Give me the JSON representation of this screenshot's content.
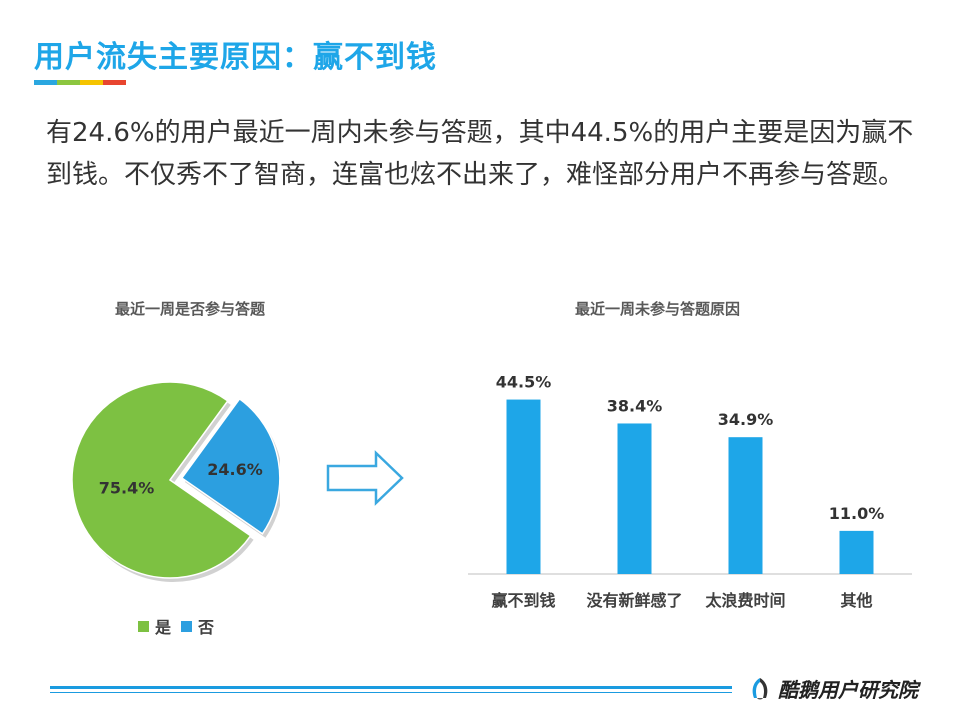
{
  "page": {
    "title": "用户流失主要原因：赢不到钱",
    "title_colors": [
      "#2aa7e0",
      "#8cc63f",
      "#f5c400",
      "#e8452f"
    ],
    "body": "有24.6%的用户最近一周内未参与答题，其中44.5%的用户主要是因为赢不到钱。不仅秀不了智商，连富也炫不出来了，难怪部分用户不再参与答题。",
    "brand": "酷鹅用户研究院"
  },
  "chart_data": [
    {
      "type": "pie",
      "title": "最近一周是否参与答题",
      "slices": [
        {
          "label": "是",
          "value": 75.4,
          "value_label": "75.4%",
          "color": "#7dc142"
        },
        {
          "label": "否",
          "value": 24.6,
          "value_label": "24.6%",
          "color": "#2c9fe0",
          "exploded": true
        }
      ],
      "legend_position": "bottom"
    },
    {
      "type": "bar",
      "title": "最近一周未参与答题原因",
      "categories": [
        "赢不到钱",
        "没有新鲜感了",
        "太浪费时间",
        "其他"
      ],
      "values": [
        44.5,
        38.4,
        34.9,
        11.0
      ],
      "value_labels": [
        "44.5%",
        "38.4%",
        "34.9%",
        "11.0%"
      ],
      "color": "#1ea6e8",
      "ylim": [
        0,
        50
      ],
      "grid": false
    }
  ]
}
